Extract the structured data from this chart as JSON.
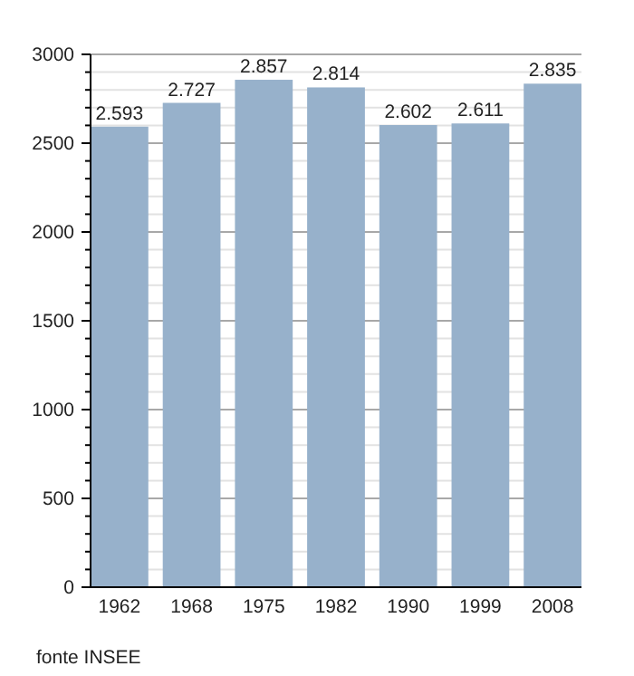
{
  "chart_data": {
    "type": "bar",
    "categories": [
      "1962",
      "1968",
      "1975",
      "1982",
      "1990",
      "1999",
      "2008"
    ],
    "values": [
      2593,
      2727,
      2857,
      2814,
      2602,
      2611,
      2835
    ],
    "value_labels": [
      "2.593",
      "2.727",
      "2.857",
      "2.814",
      "2.602",
      "2.611",
      "2.835"
    ],
    "color": "#97b1cb",
    "ylim": [
      0,
      3000
    ],
    "yticks": [
      0,
      {
        "value": 100,
        "label": null
      },
      {
        "value": 200,
        "label": null
      },
      {
        "value": 300,
        "label": null
      },
      {
        "value": 400,
        "label": null
      },
      500,
      {
        "value": 600,
        "label": null
      },
      {
        "value": 700,
        "label": null
      },
      {
        "value": 800,
        "label": null
      },
      {
        "value": 900,
        "label": null
      },
      1000,
      {
        "value": 1100,
        "label": null
      },
      {
        "value": 1200,
        "label": null
      },
      {
        "value": 1300,
        "label": null
      },
      {
        "value": 1400,
        "label": null
      },
      1500,
      {
        "value": 1600,
        "label": null
      },
      {
        "value": 1700,
        "label": null
      },
      {
        "value": 1800,
        "label": null
      },
      {
        "value": 1900,
        "label": null
      },
      2000,
      {
        "value": 2100,
        "label": null
      },
      {
        "value": 2200,
        "label": null
      },
      {
        "value": 2300,
        "label": null
      },
      {
        "value": 2400,
        "label": null
      },
      2500,
      {
        "value": 2600,
        "label": null
      },
      {
        "value": 2700,
        "label": null
      },
      {
        "value": 2800,
        "label": null
      },
      {
        "value": 2900,
        "label": null
      },
      3000
    ],
    "grid": "y",
    "annotations": [
      "fonte INSEE"
    ]
  }
}
